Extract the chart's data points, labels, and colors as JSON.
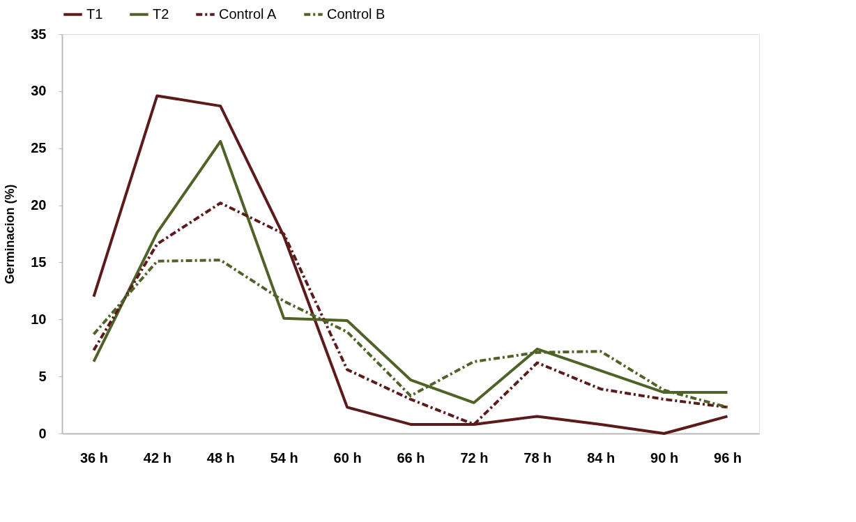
{
  "chart_data": {
    "type": "line",
    "ylabel": "Germinacion (%)",
    "categories": [
      "36 h",
      "42 h",
      "48 h",
      "54 h",
      "60 h",
      "66 h",
      "72 h",
      "78 h",
      "84 h",
      "90 h",
      "96 h"
    ],
    "series": [
      {
        "name": "T1",
        "color": "#5c1a1b",
        "line_style": "solid",
        "values": [
          12,
          29.6,
          28.7,
          17.3,
          2.3,
          0.8,
          0.8,
          1.5,
          0.8,
          0,
          1.5
        ]
      },
      {
        "name": "T2",
        "color": "#4f6228",
        "line_style": "solid",
        "values": [
          6.3,
          17.6,
          25.6,
          10.1,
          9.9,
          4.7,
          2.7,
          7.4,
          5.5,
          3.6,
          3.6
        ]
      },
      {
        "name": "Control A",
        "color": "#5c1a1b",
        "line_style": "dashed",
        "values": [
          7.3,
          16.6,
          20.2,
          17.5,
          5.6,
          3,
          0.8,
          6.2,
          3.9,
          3,
          2.3
        ]
      },
      {
        "name": "Control B",
        "color": "#4f6228",
        "line_style": "dashed",
        "values": [
          8.7,
          15.1,
          15.2,
          11.6,
          8.9,
          3.3,
          6.3,
          7.1,
          7.2,
          3.8,
          2.3
        ]
      }
    ],
    "ylim": [
      0,
      35
    ],
    "yticks": [
      0,
      5,
      10,
      15,
      20,
      25,
      30,
      35
    ],
    "grid": false,
    "legend": "top",
    "marker": "none"
  }
}
